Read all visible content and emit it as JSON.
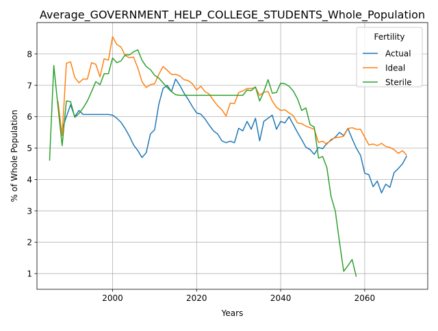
{
  "chart_data": {
    "type": "line",
    "title": "Average_GOVERNMENT_HELP_COLLEGE_STUDENTS_Whole_Population",
    "xlabel": "Years",
    "ylabel": "% of Whole Population",
    "xlim": [
      1982,
      2075
    ],
    "ylim": [
      0.5,
      9.0
    ],
    "xticks": [
      2000,
      2020,
      2040,
      2060
    ],
    "yticks": [
      1,
      2,
      3,
      4,
      5,
      6,
      7,
      8
    ],
    "grid": true,
    "legend": {
      "title": "Fertility",
      "placement": "top-right"
    },
    "colors": {
      "Actual": "#1f77b4",
      "Ideal": "#ff7f0e",
      "Sterile": "#2ca02c"
    },
    "series": [
      {
        "name": "Actual",
        "x": [
          1988,
          1989,
          1990,
          1991,
          1992,
          1993,
          1994,
          1995,
          1996,
          1997,
          1998,
          1999,
          2000,
          2001,
          2002,
          2003,
          2004,
          2005,
          2006,
          2007,
          2008,
          2009,
          2010,
          2011,
          2012,
          2013,
          2014,
          2015,
          2016,
          2017,
          2018,
          2019,
          2020,
          2021,
          2022,
          2023,
          2024,
          2025,
          2026,
          2027,
          2028,
          2029,
          2030,
          2031,
          2032,
          2033,
          2034,
          2035,
          2036,
          2037,
          2038,
          2039,
          2040,
          2041,
          2042,
          2043,
          2044,
          2045,
          2046,
          2047,
          2048,
          2049,
          2050,
          2051,
          2052,
          2053,
          2054,
          2055,
          2056,
          2057,
          2058,
          2059,
          2060,
          2061,
          2062,
          2063,
          2064,
          2065,
          2066,
          2067,
          2068,
          2069,
          2070
        ],
        "y": [
          5.6,
          6.0,
          6.38,
          6.0,
          6.2,
          6.07,
          6.07,
          6.07,
          6.07,
          6.07,
          6.07,
          6.07,
          6.05,
          5.95,
          5.82,
          5.62,
          5.38,
          5.1,
          4.92,
          4.7,
          4.85,
          5.45,
          5.58,
          6.4,
          6.9,
          7.0,
          6.8,
          7.2,
          7.0,
          6.75,
          6.55,
          6.32,
          6.12,
          6.08,
          5.93,
          5.73,
          5.55,
          5.45,
          5.23,
          5.17,
          5.22,
          5.17,
          5.63,
          5.55,
          5.85,
          5.6,
          5.95,
          5.23,
          5.85,
          5.95,
          6.05,
          5.6,
          5.85,
          5.8,
          6.0,
          5.75,
          5.5,
          5.27,
          5.03,
          4.95,
          4.8,
          5.02,
          4.98,
          5.15,
          5.25,
          5.35,
          5.5,
          5.4,
          5.63,
          5.3,
          5.0,
          4.77,
          4.2,
          4.15,
          3.77,
          3.95,
          3.57,
          3.85,
          3.75,
          4.22,
          4.35,
          4.5,
          4.75
        ]
      },
      {
        "name": "Ideal",
        "x": [
          1987,
          1988,
          1989,
          1990,
          1991,
          1992,
          1993,
          1994,
          1995,
          1996,
          1997,
          1998,
          1999,
          2000,
          2001,
          2002,
          2003,
          2004,
          2005,
          2006,
          2007,
          2008,
          2009,
          2010,
          2011,
          2012,
          2013,
          2014,
          2015,
          2016,
          2017,
          2018,
          2019,
          2020,
          2021,
          2022,
          2023,
          2024,
          2025,
          2026,
          2027,
          2028,
          2029,
          2030,
          2031,
          2032,
          2033,
          2034,
          2035,
          2036,
          2037,
          2038,
          2039,
          2040,
          2041,
          2042,
          2043,
          2044,
          2045,
          2046,
          2047,
          2048,
          2049,
          2050,
          2051,
          2052,
          2053,
          2054,
          2055,
          2056,
          2057,
          2058,
          2059,
          2060,
          2061,
          2062,
          2063,
          2064,
          2065,
          2066,
          2067,
          2068,
          2069,
          2070
        ],
        "y": [
          6.5,
          5.4,
          7.7,
          7.75,
          7.25,
          7.08,
          7.2,
          7.2,
          7.72,
          7.67,
          7.27,
          7.85,
          7.8,
          8.55,
          8.3,
          8.22,
          7.95,
          7.88,
          7.9,
          7.55,
          7.12,
          6.93,
          7.02,
          7.05,
          7.35,
          7.6,
          7.48,
          7.35,
          7.35,
          7.3,
          7.18,
          7.15,
          7.05,
          6.85,
          6.97,
          6.8,
          6.72,
          6.52,
          6.35,
          6.22,
          6.02,
          6.43,
          6.42,
          6.77,
          6.82,
          6.9,
          6.9,
          6.93,
          6.68,
          6.78,
          6.8,
          6.5,
          6.3,
          6.2,
          6.22,
          6.12,
          6.03,
          5.8,
          5.78,
          5.7,
          5.65,
          5.6,
          5.18,
          5.22,
          5.12,
          5.28,
          5.33,
          5.35,
          5.38,
          5.62,
          5.65,
          5.6,
          5.6,
          5.35,
          5.1,
          5.13,
          5.08,
          5.15,
          5.05,
          5.02,
          4.95,
          4.83,
          4.92,
          4.77
        ]
      },
      {
        "name": "Sterile",
        "x": [
          1985,
          1986,
          1987,
          1988,
          1989,
          1990,
          1991,
          1992,
          1993,
          1994,
          1995,
          1996,
          1997,
          1998,
          1999,
          2000,
          2001,
          2002,
          2003,
          2004,
          2005,
          2006,
          2007,
          2008,
          2009,
          2010,
          2011,
          2012,
          2013,
          2014,
          2015,
          2016,
          2017,
          2018,
          2019,
          2020,
          2021,
          2022,
          2023,
          2024,
          2025,
          2026,
          2027,
          2028,
          2029,
          2030,
          2031,
          2032,
          2033,
          2034,
          2035,
          2036,
          2037,
          2038,
          2039,
          2040,
          2041,
          2042,
          2043,
          2044,
          2045,
          2046,
          2047,
          2048,
          2049,
          2050,
          2051,
          2052,
          2053,
          2054,
          2055,
          2056,
          2057,
          2058
        ],
        "y": [
          4.6,
          7.63,
          6.33,
          5.08,
          6.5,
          6.48,
          5.98,
          6.1,
          6.28,
          6.5,
          6.8,
          7.12,
          7.02,
          7.37,
          7.37,
          7.87,
          7.72,
          7.78,
          7.97,
          7.97,
          8.07,
          8.13,
          7.8,
          7.6,
          7.5,
          7.32,
          7.23,
          7.08,
          6.93,
          6.8,
          6.7,
          6.68,
          6.68,
          6.68,
          6.68,
          6.68,
          6.68,
          6.68,
          6.68,
          6.68,
          6.68,
          6.68,
          6.68,
          6.68,
          6.68,
          6.68,
          6.68,
          6.85,
          6.83,
          6.95,
          6.5,
          6.8,
          7.18,
          6.75,
          6.77,
          7.07,
          7.05,
          6.97,
          6.82,
          6.57,
          6.2,
          6.28,
          5.75,
          5.67,
          4.68,
          4.73,
          4.38,
          3.45,
          3.0,
          2.0,
          1.07,
          1.25,
          1.45,
          0.9
        ]
      }
    ]
  }
}
